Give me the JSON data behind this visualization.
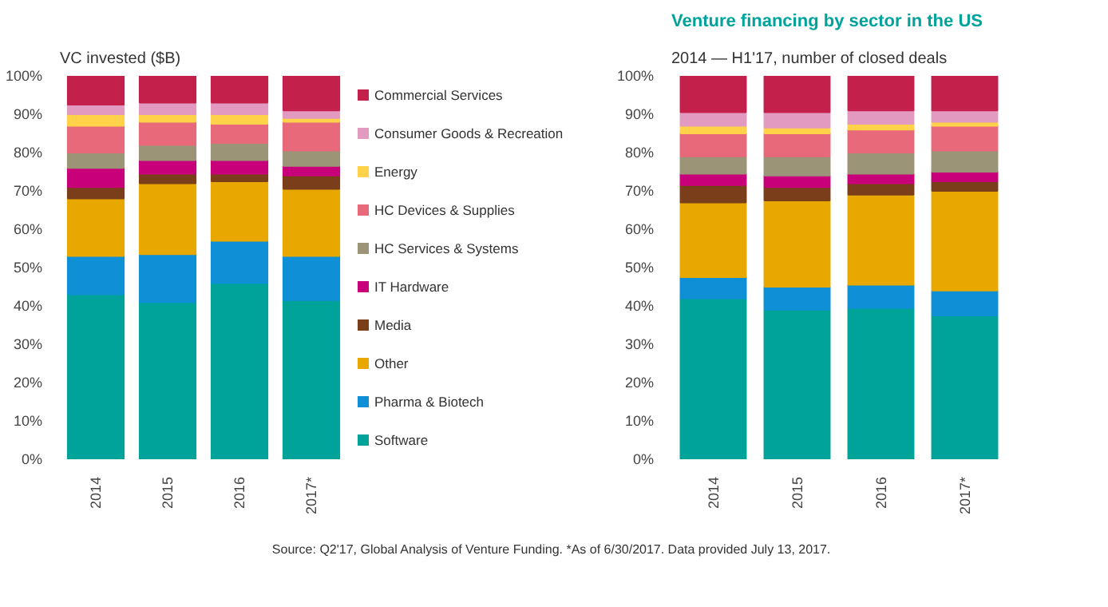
{
  "chart_data": [
    {
      "type": "bar",
      "stacked": true,
      "subtitle": "VC invested ($B)",
      "categories": [
        "2014",
        "2015",
        "2016",
        "2017*"
      ],
      "ylim": [
        0,
        100
      ],
      "yticks": [
        {
          "value": 0,
          "label": "0%"
        },
        {
          "value": 10,
          "label": "10%"
        },
        {
          "value": 20,
          "label": "20%"
        },
        {
          "value": 30,
          "label": "30%"
        },
        {
          "value": 40,
          "label": "40%"
        },
        {
          "value": 50,
          "label": "50%"
        },
        {
          "value": 60,
          "label": "60%"
        },
        {
          "value": 70,
          "label": "70%"
        },
        {
          "value": 80,
          "label": "80%"
        },
        {
          "value": 90,
          "label": "90%"
        },
        {
          "value": 100,
          "label": "100%"
        }
      ],
      "legend": "right",
      "annotations": [
        "Source: Q2'17, Global Analysis of Venture Funding. *As of 6/30/2017. Data provided July 13, 2017."
      ],
      "series": [
        {
          "name": "Software",
          "color": "#00a39a",
          "values": [
            43,
            41,
            46,
            41.5
          ]
        },
        {
          "name": "Pharma & Biotech",
          "color": "#0f8fd6",
          "values": [
            10,
            12.5,
            11,
            11.5
          ]
        },
        {
          "name": "Other",
          "color": "#e8a800",
          "values": [
            15,
            18.5,
            15.5,
            17.5
          ]
        },
        {
          "name": "Media",
          "color": "#7a3e1a",
          "values": [
            3,
            2.5,
            2,
            3.5
          ]
        },
        {
          "name": "IT Hardware",
          "color": "#c8007a",
          "values": [
            5,
            3.5,
            3.5,
            2.5
          ]
        },
        {
          "name": "HC Services & Systems",
          "color": "#9c9477",
          "values": [
            4,
            4,
            4.5,
            4
          ]
        },
        {
          "name": "HC Devices & Supplies",
          "color": "#e8697a",
          "values": [
            7,
            6,
            5,
            7.5
          ]
        },
        {
          "name": "Energy",
          "color": "#ffd24a",
          "values": [
            3,
            2,
            2.5,
            1
          ]
        },
        {
          "name": "Consumer Goods & Recreation",
          "color": "#e39ac0",
          "values": [
            2.5,
            3,
            3,
            2
          ]
        },
        {
          "name": "Commercial Services",
          "color": "#c4204c",
          "values": [
            7.5,
            7,
            7,
            9
          ]
        }
      ]
    },
    {
      "type": "bar",
      "stacked": true,
      "title": "Venture financing by sector in the US",
      "subtitle": "2014 — H1'17, number of closed deals",
      "categories": [
        "2014",
        "2015",
        "2016",
        "2017*"
      ],
      "ylim": [
        0,
        100
      ],
      "yticks": [
        {
          "value": 0,
          "label": "0%"
        },
        {
          "value": 10,
          "label": "10%"
        },
        {
          "value": 20,
          "label": "20%"
        },
        {
          "value": 30,
          "label": "30%"
        },
        {
          "value": 40,
          "label": "40%"
        },
        {
          "value": 50,
          "label": "50%"
        },
        {
          "value": 60,
          "label": "60%"
        },
        {
          "value": 70,
          "label": "70%"
        },
        {
          "value": 80,
          "label": "80%"
        },
        {
          "value": 90,
          "label": "90%"
        },
        {
          "value": 100,
          "label": "100%"
        }
      ],
      "series": [
        {
          "color": "#00a39a",
          "values": [
            42,
            39,
            39.5,
            37.5
          ]
        },
        {
          "color": "#0f8fd6",
          "values": [
            5.5,
            6,
            6,
            6.5
          ]
        },
        {
          "color": "#e8a800",
          "values": [
            19.5,
            22.5,
            23.5,
            26
          ]
        },
        {
          "color": "#7a3e1a",
          "values": [
            4.5,
            3.5,
            3,
            2.5
          ]
        },
        {
          "color": "#c8007a",
          "values": [
            3,
            3,
            2.5,
            2.5
          ]
        },
        {
          "color": "#9c9477",
          "values": [
            4.5,
            5,
            5.5,
            5.5
          ]
        },
        {
          "color": "#e8697a",
          "values": [
            6,
            6,
            6,
            6.5
          ]
        },
        {
          "color": "#ffd24a",
          "values": [
            2,
            1.5,
            1.5,
            1
          ]
        },
        {
          "color": "#e39ac0",
          "values": [
            3.5,
            4,
            3.5,
            3
          ]
        },
        {
          "color": "#c4204c",
          "values": [
            9.5,
            9.5,
            9,
            9
          ]
        }
      ]
    }
  ]
}
